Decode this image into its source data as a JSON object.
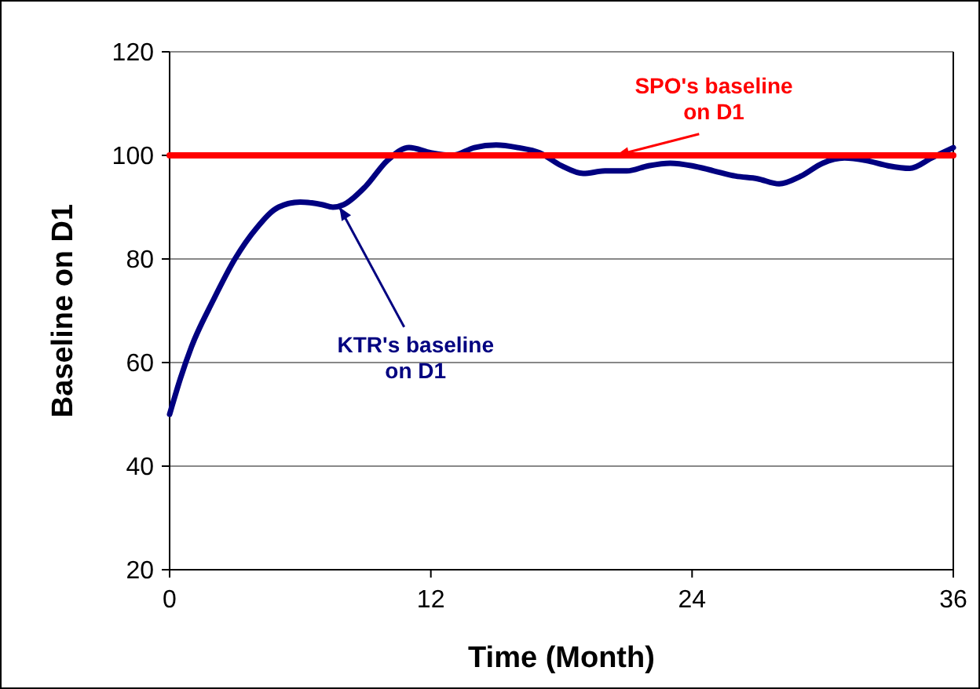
{
  "chart_data": {
    "type": "line",
    "xlabel": "Time (Month)",
    "ylabel": "Baseline on D1",
    "xlim": [
      0,
      36
    ],
    "xticks": [
      0,
      12,
      24,
      36
    ],
    "ylim": [
      20,
      120
    ],
    "yticks": [
      20,
      40,
      60,
      80,
      100,
      120
    ],
    "grid": "y",
    "marker": "none",
    "line_style": "solid",
    "series": [
      {
        "color": "#000080",
        "x": [
          0,
          0.5,
          1,
          2,
          3,
          4,
          5,
          6,
          7,
          7.5,
          8,
          9,
          10,
          11,
          12,
          13,
          14,
          15,
          16,
          17,
          18,
          19,
          20,
          21,
          22,
          23,
          24,
          25,
          26,
          27,
          28,
          29,
          30,
          31,
          32,
          33,
          34,
          35,
          36
        ],
        "values": [
          50,
          57,
          63,
          72,
          80,
          86,
          90,
          91,
          90.5,
          90,
          90.5,
          94,
          99,
          101.5,
          100.5,
          100,
          101.5,
          102,
          101.5,
          100.5,
          98,
          96.5,
          97,
          97,
          98,
          98.5,
          98,
          97,
          96,
          95.5,
          94.5,
          96,
          98.5,
          99.5,
          99,
          98,
          97.5,
          99.5,
          101.5
        ]
      },
      {
        "color": "#ff0000",
        "x": [
          0,
          36
        ],
        "values": [
          100,
          100
        ]
      }
    ],
    "annotations": [
      {
        "text": "SPO's baseline\non D1",
        "x": 20.5,
        "y": 100
      },
      {
        "text": "KTR's baseline\non D1",
        "x": 7.8,
        "y": 90
      }
    ]
  }
}
